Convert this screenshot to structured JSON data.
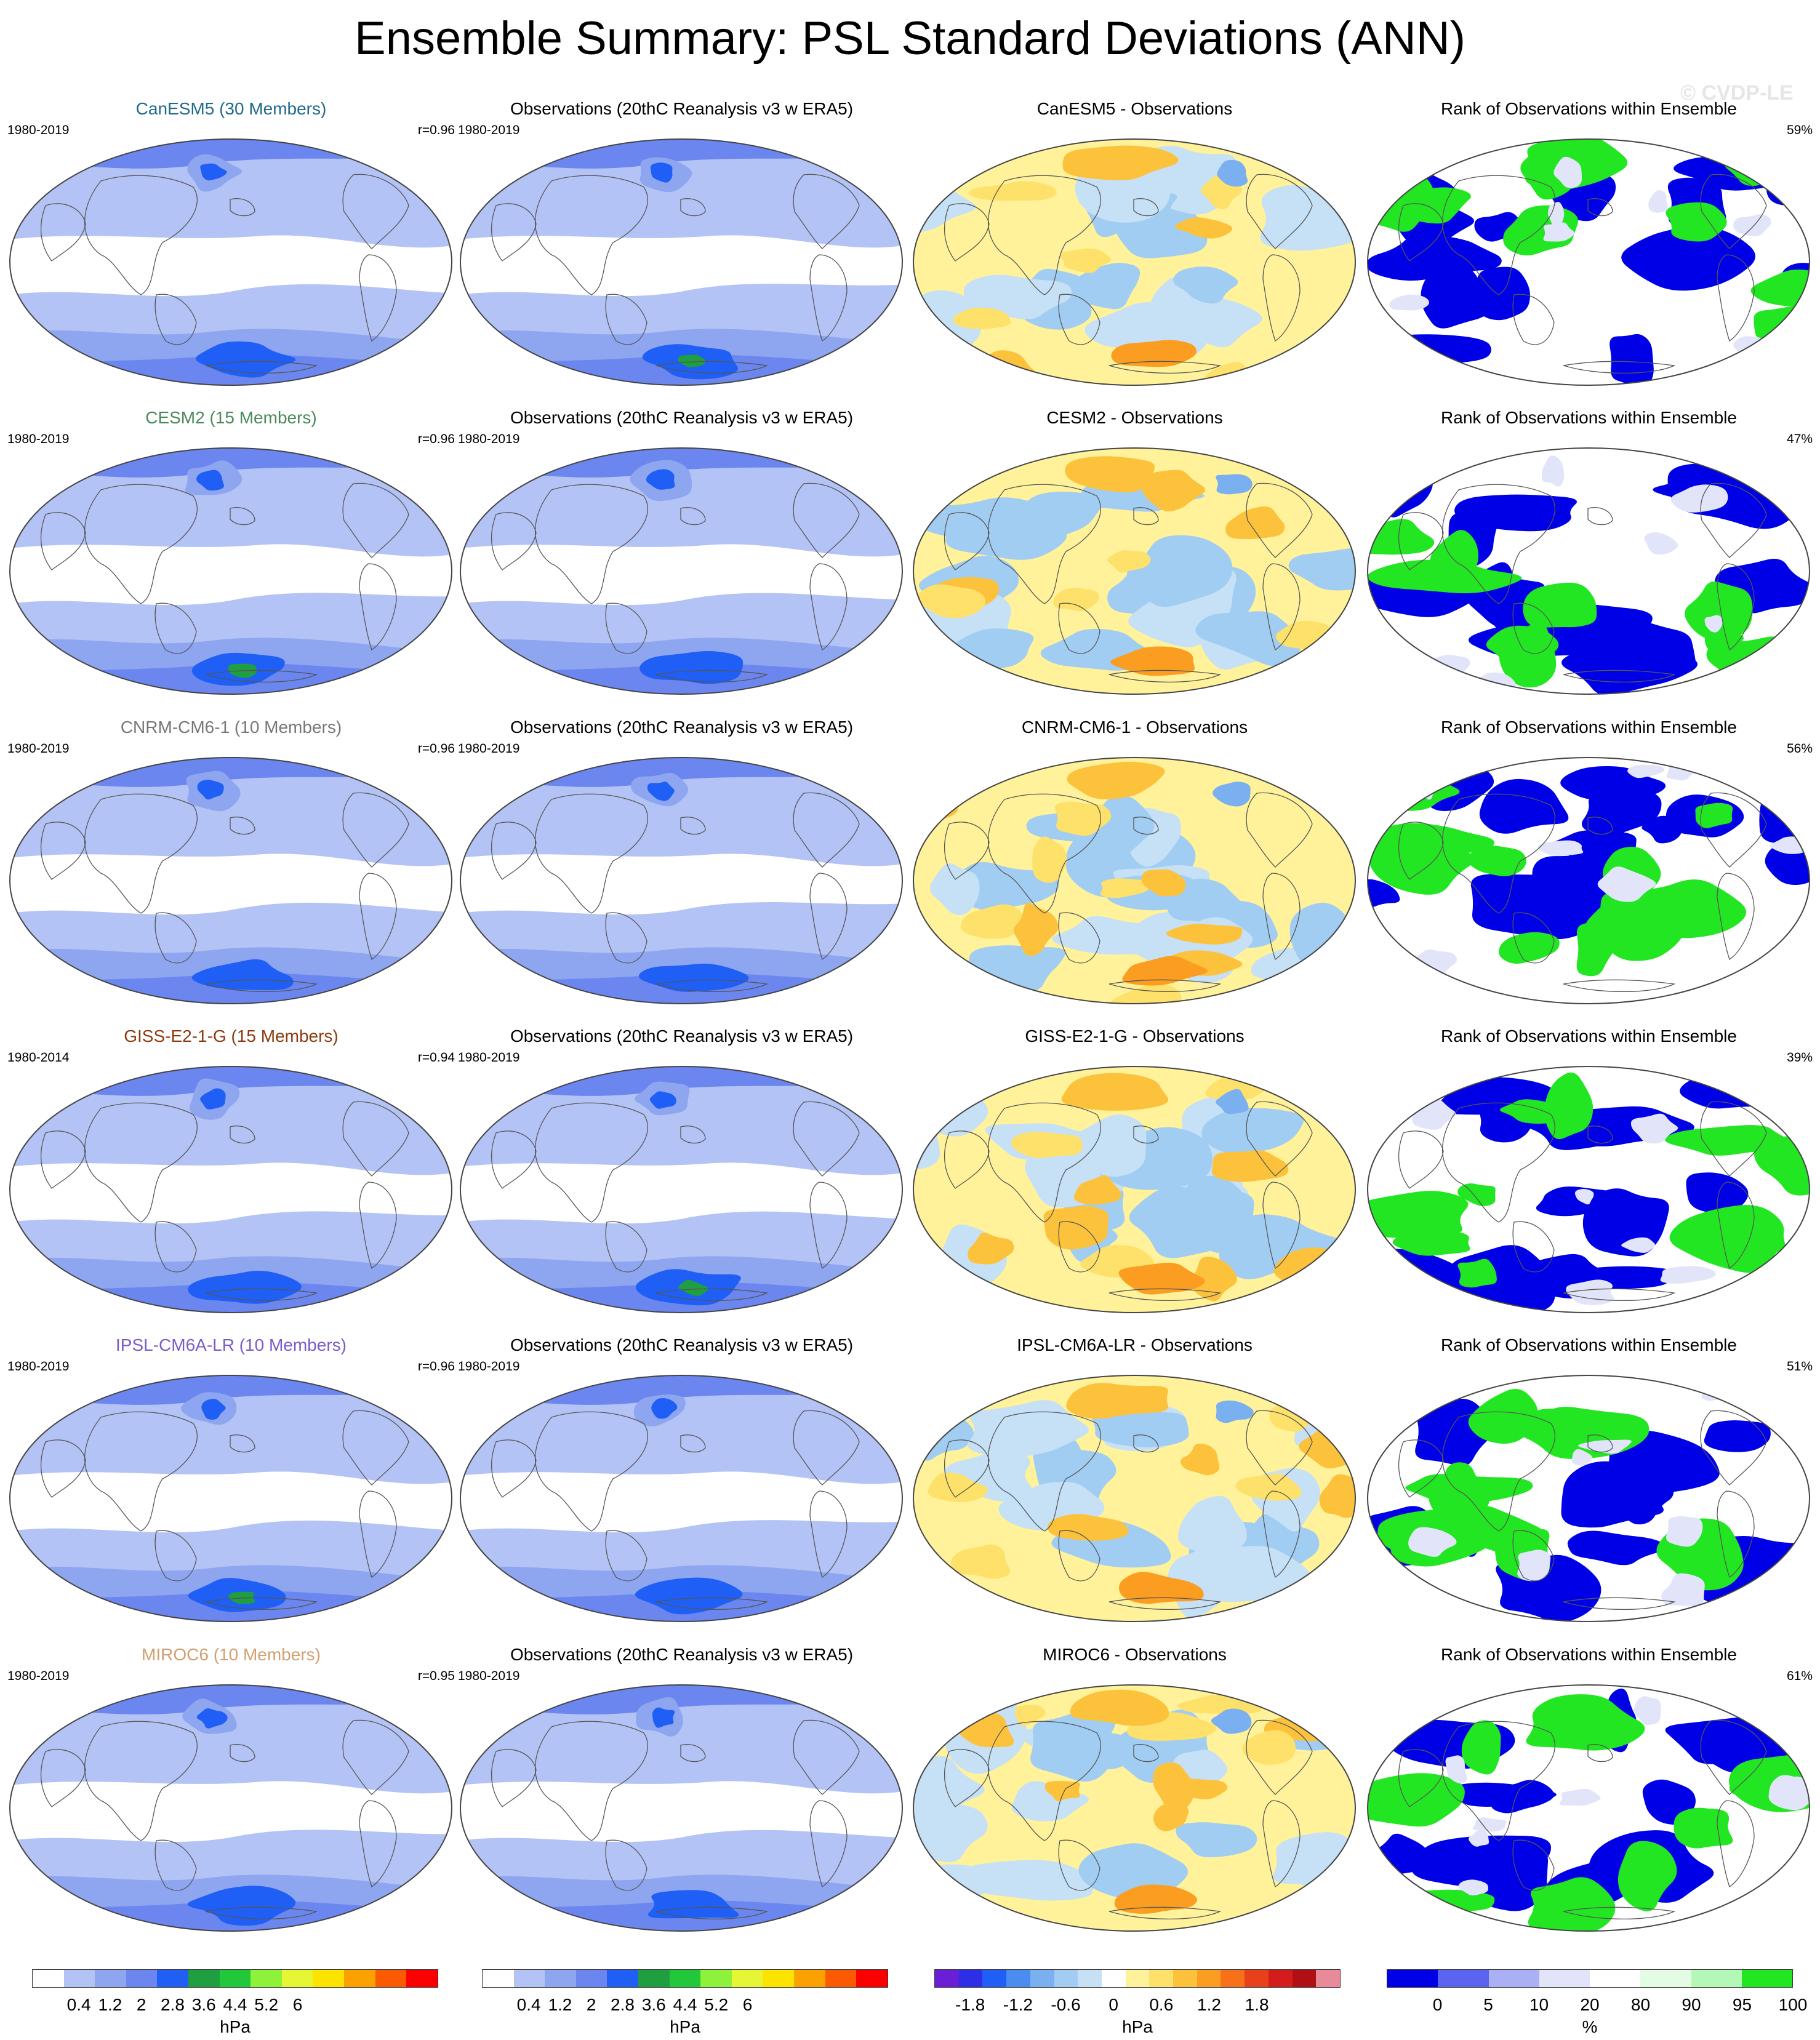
{
  "title": "Ensemble Summary: PSL Standard Deviations (ANN)",
  "watermark": "© CVDP-LE",
  "columns": [
    "model",
    "observations",
    "difference",
    "rank"
  ],
  "rows": [
    {
      "model": {
        "title": "CanESM5 (30 Members)",
        "years": "1980-2019",
        "r": "r=0.96",
        "color": "#1f6b8a"
      },
      "obs": {
        "title": "Observations (20thC Reanalysis v3 w ERA5)",
        "years": "1980-2019"
      },
      "diff": {
        "title": "CanESM5 - Observations"
      },
      "rank": {
        "title": "Rank of Observations within Ensemble",
        "pct": "59%"
      }
    },
    {
      "model": {
        "title": "CESM2 (15 Members)",
        "years": "1980-2019",
        "r": "r=0.96",
        "color": "#4a8a5a"
      },
      "obs": {
        "title": "Observations (20thC Reanalysis v3 w ERA5)",
        "years": "1980-2019"
      },
      "diff": {
        "title": "CESM2 - Observations"
      },
      "rank": {
        "title": "Rank of Observations within Ensemble",
        "pct": "47%"
      }
    },
    {
      "model": {
        "title": "CNRM-CM6-1 (10 Members)",
        "years": "1980-2019",
        "r": "r=0.96",
        "color": "#777777"
      },
      "obs": {
        "title": "Observations (20thC Reanalysis v3 w ERA5)",
        "years": "1980-2019"
      },
      "diff": {
        "title": "CNRM-CM6-1 - Observations"
      },
      "rank": {
        "title": "Rank of Observations within Ensemble",
        "pct": "56%"
      }
    },
    {
      "model": {
        "title": "GISS-E2-1-G (15 Members)",
        "years": "1980-2014",
        "r": "r=0.94",
        "color": "#8b3a0f"
      },
      "obs": {
        "title": "Observations (20thC Reanalysis v3 w ERA5)",
        "years": "1980-2019"
      },
      "diff": {
        "title": "GISS-E2-1-G - Observations"
      },
      "rank": {
        "title": "Rank of Observations within Ensemble",
        "pct": "39%"
      }
    },
    {
      "model": {
        "title": "IPSL-CM6A-LR (10 Members)",
        "years": "1980-2019",
        "r": "r=0.96",
        "color": "#7a5cc8"
      },
      "obs": {
        "title": "Observations (20thC Reanalysis v3 w ERA5)",
        "years": "1980-2019"
      },
      "diff": {
        "title": "IPSL-CM6A-LR - Observations"
      },
      "rank": {
        "title": "Rank of Observations within Ensemble",
        "pct": "51%"
      }
    },
    {
      "model": {
        "title": "MIROC6 (10 Members)",
        "years": "1980-2019",
        "r": "r=0.95",
        "color": "#d2a070"
      },
      "obs": {
        "title": "Observations (20thC Reanalysis v3 w ERA5)",
        "years": "1980-2019"
      },
      "diff": {
        "title": "MIROC6 - Observations"
      },
      "rank": {
        "title": "Rank of Observations within Ensemble",
        "pct": "61%"
      }
    }
  ],
  "colorbars": {
    "stddev": {
      "colors": [
        "#ffffff",
        "#b4c3f5",
        "#8ea5f0",
        "#6b86ee",
        "#1f5ff5",
        "#1f9f3f",
        "#22c83c",
        "#8ff23a",
        "#e6f534",
        "#fce400",
        "#fca200",
        "#fc5a00",
        "#fc0000"
      ],
      "ticks": [
        "0.4",
        "1.2",
        "2",
        "2.8",
        "3.6",
        "4.4",
        "5.2",
        "6"
      ],
      "units": "hPa"
    },
    "diff": {
      "colors": [
        "#6a1fd6",
        "#2e2ee6",
        "#1f5ff5",
        "#4a8cf0",
        "#7ab0f0",
        "#a2cdf2",
        "#c6e0f6",
        "#ffffff",
        "#fff29a",
        "#fde16a",
        "#fcc23c",
        "#fb9d20",
        "#f7701a",
        "#e8401a",
        "#d41c1c",
        "#b00f14",
        "#e88a9a"
      ],
      "ticks": [
        "-1.8",
        "-1.2",
        "-0.6",
        "0",
        "0.6",
        "1.2",
        "1.8"
      ],
      "units": "hPa"
    },
    "rank": {
      "colors": [
        "#0000e6",
        "#5a64f0",
        "#aab0f4",
        "#e2e4fa",
        "#ffffff",
        "#e4fbe4",
        "#b4f8b8",
        "#22e622"
      ],
      "ticks": [
        "0",
        "5",
        "10",
        "20",
        "80",
        "90",
        "95",
        "100"
      ],
      "units": "%"
    }
  },
  "chart_data": {
    "type": "heatmap",
    "title": "Ensemble Summary: PSL Standard Deviations (ANN)",
    "models": [
      {
        "name": "CanESM5",
        "members": 30,
        "years": "1980-2019",
        "pattern_correlation": 0.96,
        "rank_percent": 59
      },
      {
        "name": "CESM2",
        "members": 15,
        "years": "1980-2019",
        "pattern_correlation": 0.96,
        "rank_percent": 47
      },
      {
        "name": "CNRM-CM6-1",
        "members": 10,
        "years": "1980-2019",
        "pattern_correlation": 0.96,
        "rank_percent": 56
      },
      {
        "name": "GISS-E2-1-G",
        "members": 15,
        "years": "1980-2014",
        "pattern_correlation": 0.94,
        "rank_percent": 39
      },
      {
        "name": "IPSL-CM6A-LR",
        "members": 10,
        "years": "1980-2019",
        "pattern_correlation": 0.96,
        "rank_percent": 51
      },
      {
        "name": "MIROC6",
        "members": 10,
        "years": "1980-2019",
        "pattern_correlation": 0.95,
        "rank_percent": 61
      }
    ],
    "observations": {
      "dataset": "20thC Reanalysis v3 w ERA5",
      "years": "1980-2019"
    },
    "stddev_levels_hPa": [
      0.4,
      1.2,
      2,
      2.8,
      3.6,
      4.4,
      5.2,
      6
    ],
    "difference_levels_hPa": [
      -1.8,
      -1.2,
      -0.6,
      0,
      0.6,
      1.2,
      1.8
    ],
    "rank_levels_percent": [
      0,
      5,
      10,
      20,
      80,
      90,
      95,
      100
    ],
    "projection": "Robinson (global, Pacific-centered)"
  }
}
